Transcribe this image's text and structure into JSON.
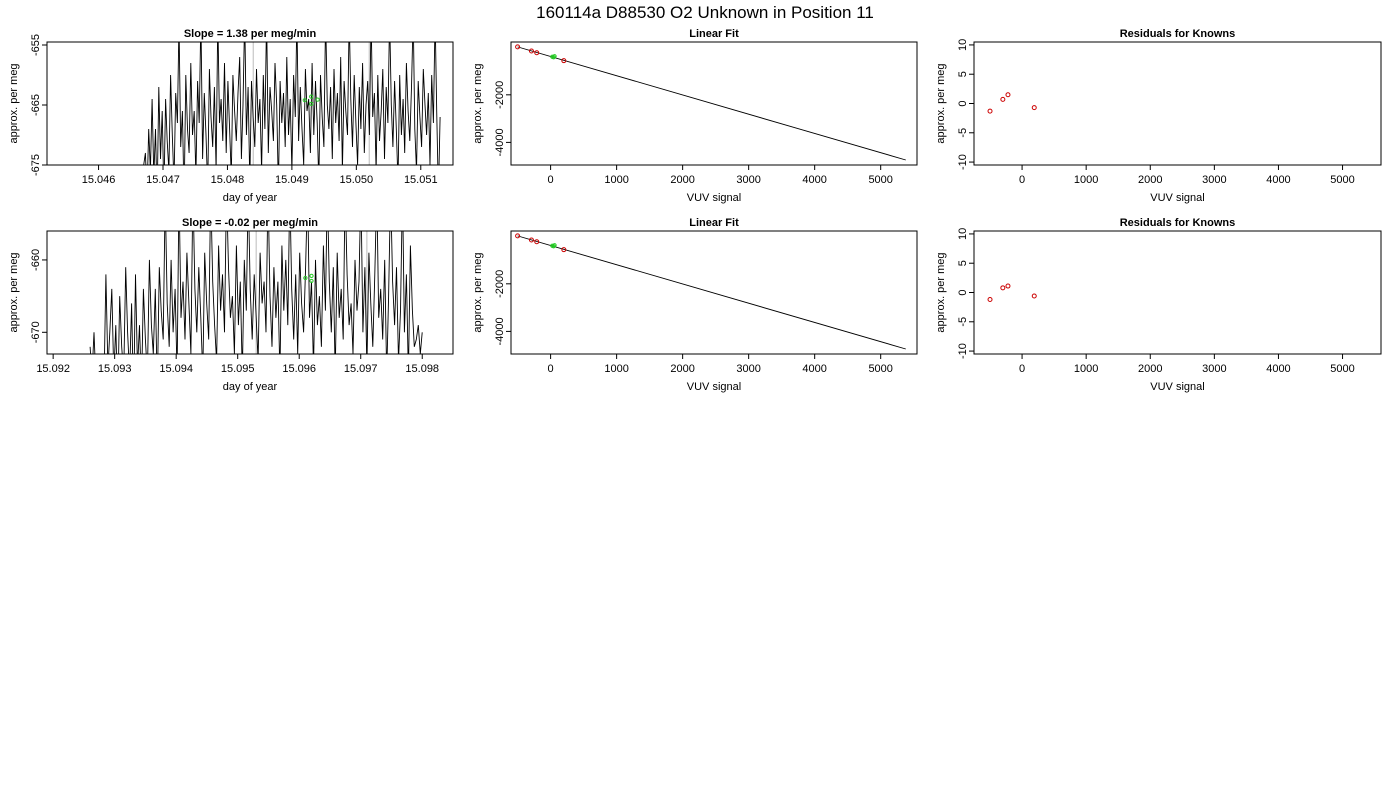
{
  "suptitle": "160114a      D88530   O2 Unknown in Position  11",
  "colors": {
    "trace": "#000000",
    "known_points": "#cc0000",
    "unknown_points": "#22cc22",
    "marker_lines": "#bbbbbb",
    "fit_line": "#000000"
  },
  "chart_data": [
    {
      "type": "line",
      "title": "Slope =  1.38  per meg/min",
      "xlabel": "day of year",
      "ylabel": "approx. per meg",
      "xlim": [
        15.0452,
        15.0515
      ],
      "ylim": [
        -675,
        -654.5
      ],
      "xticks": [
        15.046,
        15.047,
        15.048,
        15.049,
        15.05,
        15.051
      ],
      "xtick_labels": [
        "15.046",
        "15.047",
        "15.048",
        "15.049",
        "15.050",
        "15.051"
      ],
      "yticks": [
        -675,
        -665,
        -655
      ],
      "ytick_labels": [
        "-675",
        "-665",
        "-655"
      ],
      "vlines": [
        15.0484,
        15.0502
      ],
      "trace_x_start": 15.0467,
      "trace_x_end": 15.0513,
      "trace": [
        -675,
        -673,
        -680,
        -669,
        -676,
        -664,
        -677,
        -669,
        -681,
        -662,
        -674,
        -666,
        -680,
        -664,
        -671,
        -676,
        -660,
        -670,
        -678,
        -663,
        -668,
        -651,
        -672,
        -666,
        -681,
        -660,
        -669,
        -673,
        -658,
        -670,
        -666,
        -677,
        -661,
        -668,
        -650,
        -674,
        -663,
        -670,
        -679,
        -659,
        -667,
        -672,
        -662,
        -676,
        -650,
        -668,
        -664,
        -671,
        -658,
        -673,
        -661,
        -669,
        -677,
        -660,
        -666,
        -671,
        -663,
        -657,
        -674,
        -665,
        -650,
        -670,
        -662,
        -678,
        -661,
        -667,
        -672,
        -659,
        -668,
        -664,
        -676,
        -660,
        -669,
        -650,
        -673,
        -662,
        -666,
        -671,
        -658,
        -665,
        -679,
        -661,
        -668,
        -663,
        -672,
        -657,
        -670,
        -664,
        -676,
        -660,
        -667,
        -650,
        -671,
        -662,
        -669,
        -675,
        -659,
        -666,
        -664,
        -673,
        -658,
        -670,
        -661,
        -668,
        -678,
        -660,
        -667,
        -672,
        -650,
        -665,
        -669,
        -662,
        -674,
        -659,
        -668,
        -663,
        -671,
        -657,
        -676,
        -661,
        -666,
        -670,
        -650,
        -664,
        -672,
        -660,
        -668,
        -675,
        -662,
        -669,
        -658,
        -673,
        -665,
        -661,
        -670,
        -650,
        -667,
        -663,
        -676,
        -660,
        -671,
        -666,
        -659,
        -674,
        -662,
        -668,
        -650,
        -665,
        -672,
        -661,
        -669,
        -678,
        -660,
        -670,
        -664,
        -673,
        -658,
        -666,
        -671,
        -662,
        -650,
        -669,
        -676,
        -661,
        -667,
        -672,
        -659,
        -665,
        -670,
        -663,
        -675,
        -660,
        -668,
        -650,
        -666,
        -680,
        -667
      ],
      "unknown_points": {
        "x": [
          15.0492,
          15.0493,
          15.0493,
          15.0494
        ],
        "y": [
          -664.2,
          -663.6,
          -664.8,
          -664.1
        ]
      }
    },
    {
      "type": "scatter",
      "title": "Linear Fit",
      "xlabel": "VUV signal",
      "ylabel": "approx. per meg",
      "xlim": [
        -600,
        5550
      ],
      "ylim": [
        -4950,
        220
      ],
      "xticks": [
        0,
        1000,
        2000,
        3000,
        4000,
        5000
      ],
      "xtick_labels": [
        "0",
        "1000",
        "2000",
        "3000",
        "4000",
        "5000"
      ],
      "yticks": [
        -4000,
        -2000
      ],
      "ytick_labels": [
        "-4000",
        "-2000"
      ],
      "fit_line": {
        "x": [
          -500,
          5380
        ],
        "y": [
          15,
          -4740
        ]
      },
      "known_points": {
        "x": [
          -500,
          -290,
          -210,
          200
        ],
        "y": [
          15,
          -160,
          -230,
          -565
        ]
      },
      "unknown_points": {
        "x": [
          25,
          45,
          60
        ],
        "y": [
          -400,
          -420,
          -380
        ]
      }
    },
    {
      "type": "scatter",
      "title": "Residuals for Knowns",
      "xlabel": "VUV signal",
      "ylabel": "approx. per meg",
      "xlim": [
        -750,
        5600
      ],
      "ylim": [
        -10.5,
        10.5
      ],
      "xticks": [
        0,
        1000,
        2000,
        3000,
        4000,
        5000
      ],
      "xtick_labels": [
        "0",
        "1000",
        "2000",
        "3000",
        "4000",
        "5000"
      ],
      "yticks": [
        -10,
        -5,
        0,
        5,
        10
      ],
      "ytick_labels": [
        "-10",
        "-5",
        "0",
        "5",
        "10"
      ],
      "known_points": {
        "x": [
          -500,
          -300,
          -220,
          190
        ],
        "y": [
          -1.3,
          0.7,
          1.5,
          -0.7
        ]
      }
    },
    {
      "type": "line",
      "title": "Slope =  -0.02  per meg/min",
      "xlabel": "day of year",
      "ylabel": "approx. per meg",
      "xlim": [
        15.0919,
        15.0985
      ],
      "ylim": [
        -673,
        -656
      ],
      "xticks": [
        15.092,
        15.093,
        15.094,
        15.095,
        15.096,
        15.097,
        15.098
      ],
      "xtick_labels": [
        "15.092",
        "15.093",
        "15.094",
        "15.095",
        "15.096",
        "15.097",
        "15.098"
      ],
      "yticks": [
        -670,
        -660
      ],
      "ytick_labels": [
        "-670",
        "-660"
      ],
      "vlines": [
        15.0953,
        15.0971
      ],
      "trace_x_start": 15.0926,
      "trace_x_end": 15.098,
      "trace": [
        -672,
        -676,
        -670,
        -677,
        -673,
        -680,
        -675,
        -678,
        -662,
        -675,
        -670,
        -664,
        -676,
        -669,
        -680,
        -665,
        -672,
        -676,
        -661,
        -670,
        -676,
        -666,
        -680,
        -662,
        -675,
        -669,
        -678,
        -664,
        -671,
        -676,
        -660,
        -669,
        -673,
        -664,
        -678,
        -661,
        -667,
        -671,
        -651,
        -666,
        -672,
        -660,
        -670,
        -664,
        -676,
        -650,
        -668,
        -663,
        -671,
        -659,
        -666,
        -673,
        -650,
        -664,
        -670,
        -661,
        -668,
        -676,
        -659,
        -666,
        -671,
        -650,
        -663,
        -669,
        -674,
        -658,
        -667,
        -662,
        -670,
        -650,
        -661,
        -668,
        -665,
        -673,
        -658,
        -669,
        -663,
        -676,
        -660,
        -667,
        -650,
        -664,
        -671,
        -662,
        -668,
        -674,
        -659,
        -666,
        -663,
        -670,
        -650,
        -665,
        -672,
        -661,
        -668,
        -663,
        -676,
        -658,
        -667,
        -660,
        -669,
        -650,
        -664,
        -671,
        -662,
        -673,
        -659,
        -666,
        -670,
        -661,
        -650,
        -668,
        -663,
        -675,
        -660,
        -669,
        -665,
        -672,
        -658,
        -667,
        -650,
        -663,
        -670,
        -661,
        -676,
        -659,
        -668,
        -664,
        -671,
        -650,
        -662,
        -669,
        -666,
        -673,
        -660,
        -667,
        -663,
        -650,
        -670,
        -661,
        -675,
        -659,
        -666,
        -672,
        -662,
        -650,
        -668,
        -664,
        -671,
        -660,
        -676,
        -665,
        -650,
        -663,
        -669,
        -661,
        -674,
        -667,
        -650,
        -670,
        -662,
        -676,
        -658,
        -667,
        -672,
        -671,
        -669,
        -673,
        -670
      ],
      "unknown_points": {
        "x": [
          15.0961,
          15.0962,
          15.0962
        ],
        "y": [
          -662.5,
          -662.9,
          -662.2
        ]
      }
    },
    {
      "type": "scatter",
      "title": "Linear Fit",
      "xlabel": "VUV signal",
      "ylabel": "approx. per meg",
      "xlim": [
        -600,
        5550
      ],
      "ylim": [
        -4950,
        220
      ],
      "xticks": [
        0,
        1000,
        2000,
        3000,
        4000,
        5000
      ],
      "xtick_labels": [
        "0",
        "1000",
        "2000",
        "3000",
        "4000",
        "5000"
      ],
      "yticks": [
        -4000,
        -2000
      ],
      "ytick_labels": [
        "-4000",
        "-2000"
      ],
      "fit_line": {
        "x": [
          -500,
          5380
        ],
        "y": [
          15,
          -4740
        ]
      },
      "known_points": {
        "x": [
          -500,
          -290,
          -210,
          200
        ],
        "y": [
          15,
          -160,
          -230,
          -565
        ]
      },
      "unknown_points": {
        "x": [
          25,
          45,
          60
        ],
        "y": [
          -400,
          -420,
          -380
        ]
      }
    },
    {
      "type": "scatter",
      "title": "Residuals for Knowns",
      "xlabel": "VUV signal",
      "ylabel": "approx. per meg",
      "xlim": [
        -750,
        5600
      ],
      "ylim": [
        -10.5,
        10.5
      ],
      "xticks": [
        0,
        1000,
        2000,
        3000,
        4000,
        5000
      ],
      "xtick_labels": [
        "0",
        "1000",
        "2000",
        "3000",
        "4000",
        "5000"
      ],
      "yticks": [
        -10,
        -5,
        0,
        5,
        10
      ],
      "ytick_labels": [
        "-10",
        "-5",
        "0",
        "5",
        "10"
      ],
      "known_points": {
        "x": [
          -500,
          -300,
          -220,
          190
        ],
        "y": [
          -1.2,
          0.8,
          1.1,
          -0.6
        ]
      }
    }
  ]
}
